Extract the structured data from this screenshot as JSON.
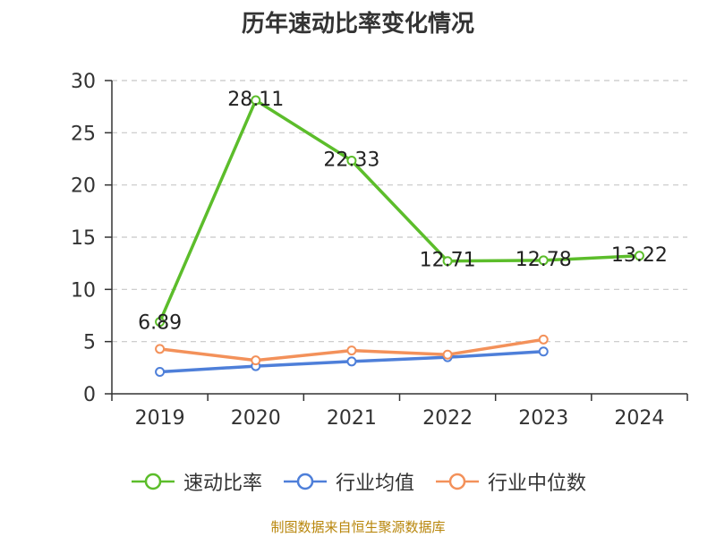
{
  "chart_data": {
    "type": "line",
    "title": "历年速动比率变化情况",
    "categories": [
      "2019",
      "2020",
      "2021",
      "2022",
      "2023",
      "2024"
    ],
    "ylim": [
      0,
      30
    ],
    "yticks": [
      "0",
      "5",
      "10",
      "15",
      "20",
      "25",
      "30"
    ],
    "grid": true,
    "legend_position": "bottom",
    "series": [
      {
        "name": "速动比率",
        "color": "#5cbd2b",
        "values": [
          6.89,
          28.11,
          22.33,
          12.71,
          12.78,
          13.22
        ],
        "labels": [
          "6.89",
          "28.11",
          "22.33",
          "12.71",
          "12.78",
          "13.22"
        ]
      },
      {
        "name": "行业均值",
        "color": "#4e7fd9",
        "values": [
          2.1,
          2.65,
          3.1,
          3.5,
          4.05,
          null
        ]
      },
      {
        "name": "行业中位数",
        "color": "#f3915a",
        "values": [
          4.3,
          3.2,
          4.15,
          3.75,
          5.2,
          null
        ]
      }
    ]
  },
  "source_text": "制图数据来自恒生聚源数据库"
}
